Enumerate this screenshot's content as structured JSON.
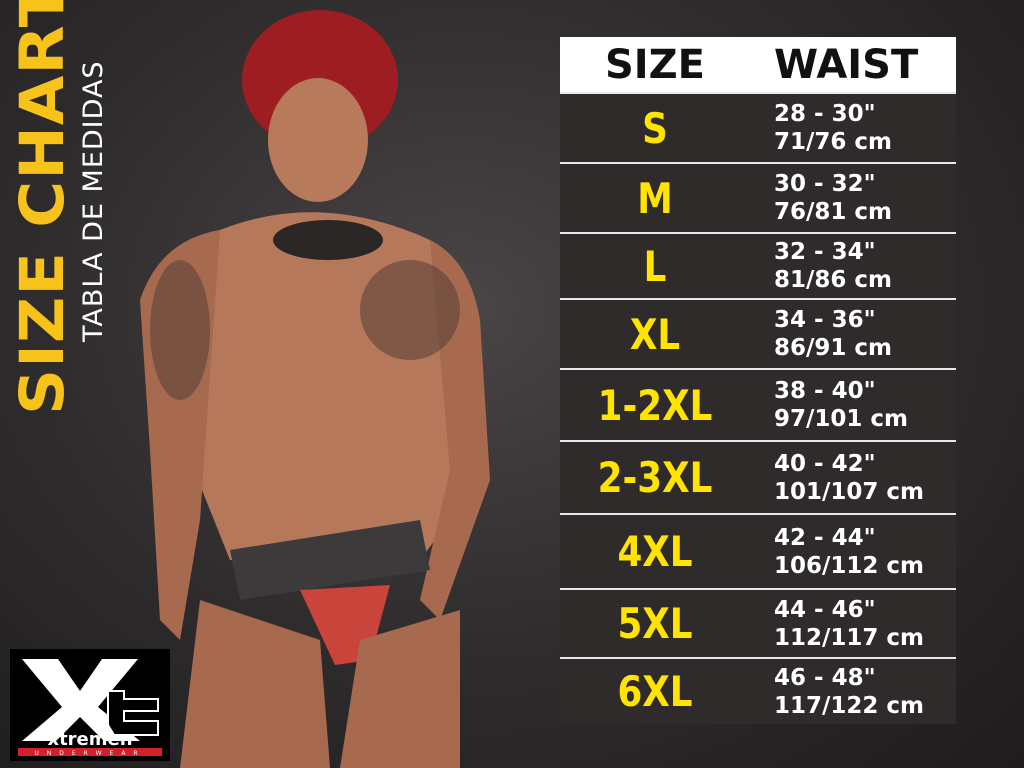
{
  "title": "SIZE CHART",
  "subtitle": "TABLA DE MEDIDAS",
  "table": {
    "headers": [
      "SIZE",
      "WAIST"
    ],
    "rows": [
      {
        "size": "S",
        "inches": "28 - 30\"",
        "cm": "71/76 cm"
      },
      {
        "size": "M",
        "inches": "30 - 32\"",
        "cm": "76/81 cm"
      },
      {
        "size": "L",
        "inches": "32 - 34\"",
        "cm": "81/86 cm"
      },
      {
        "size": "XL",
        "inches": "34 - 36\"",
        "cm": "86/91 cm"
      },
      {
        "size": "1-2XL",
        "inches": "38 - 40\"",
        "cm": "97/101 cm"
      },
      {
        "size": "2-3XL",
        "inches": "40 - 42\"",
        "cm": "101/107 cm"
      },
      {
        "size": "4XL",
        "inches": "42 - 44\"",
        "cm": "106/112 cm"
      },
      {
        "size": "5XL",
        "inches": "44 - 46\"",
        "cm": "112/117 cm"
      },
      {
        "size": "6XL",
        "inches": "46 - 48\"",
        "cm": "117/122 cm"
      }
    ]
  },
  "logo": {
    "mark": "Xt",
    "brand": "xtremen",
    "tagline": "UNDERWEAR"
  },
  "colors": {
    "accent": "#ffe400",
    "title": "#f7c21a",
    "row_bg": "#2f2b2b",
    "logo_red": "#d3202a"
  }
}
